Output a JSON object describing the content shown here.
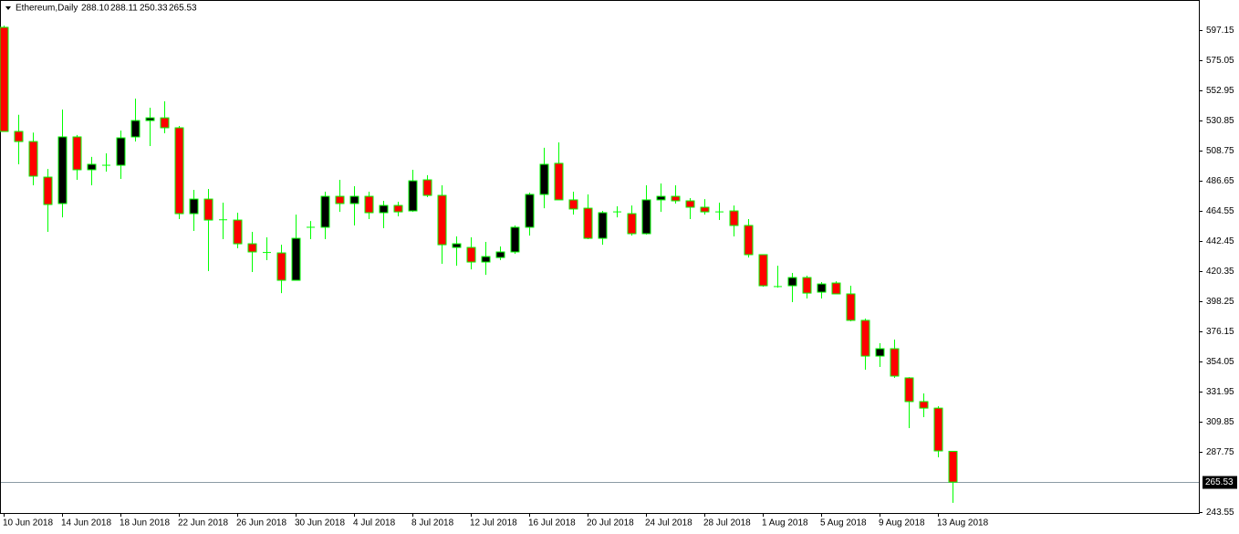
{
  "chart_data": {
    "type": "candlestick",
    "title": "Ethereum,Daily",
    "header_values": [
      "288.10",
      "288.11",
      "250.33",
      "265.53"
    ],
    "categories": [
      "10 Jun 2018",
      null,
      null,
      null,
      "14 Jun 2018",
      null,
      null,
      null,
      "18 Jun 2018",
      null,
      null,
      null,
      "22 Jun 2018",
      null,
      null,
      null,
      "26 Jun 2018",
      null,
      null,
      null,
      "30 Jun 2018",
      null,
      null,
      null,
      "4 Jul 2018",
      null,
      null,
      null,
      "8 Jul 2018",
      null,
      null,
      null,
      "12 Jul 2018",
      null,
      null,
      null,
      "16 Jul 2018",
      null,
      null,
      null,
      "20 Jul 2018",
      null,
      null,
      null,
      "24 Jul 2018",
      null,
      null,
      null,
      "28 Jul 2018",
      null,
      null,
      null,
      "1 Aug 2018",
      null,
      null,
      null,
      "5 Aug 2018",
      null,
      null,
      null,
      "9 Aug 2018",
      null,
      null,
      null,
      "13 Aug 2018",
      null
    ],
    "open": [
      599.2,
      522.8,
      515.4,
      489.3,
      469.9,
      518.8,
      494.7,
      498.7,
      498.0,
      518.8,
      530.8,
      532.8,
      525.5,
      462.5,
      473.2,
      458.5,
      457.8,
      440.4,
      434.4,
      433.7,
      413.6,
      451.8,
      452.5,
      475.2,
      469.9,
      475.2,
      463.2,
      468.5,
      464.5,
      487.3,
      475.9,
      437.7,
      437.7,
      427.0,
      430.3,
      434.4,
      452.5,
      476.6,
      499.4,
      472.6,
      466.5,
      444.4,
      463.2,
      462.5,
      447.8,
      472.6,
      475.2,
      471.9,
      467.2,
      464.5,
      464.5,
      453.8,
      432.4,
      409.6,
      409.6,
      415.6,
      404.9,
      411.6,
      403.6,
      384.2,
      358.0,
      363.4,
      342.0,
      324.6,
      319.8,
      288.1
    ],
    "high": [
      600.5,
      535.0,
      522.0,
      495.3,
      538.9,
      520.2,
      504.1,
      506.7,
      523.5,
      546.9,
      540.2,
      544.9,
      526.8,
      479.9,
      480.6,
      470.6,
      463.2,
      449.1,
      445.1,
      439.7,
      461.8,
      457.1,
      478.6,
      487.3,
      482.6,
      478.6,
      471.9,
      471.2,
      494.7,
      490.7,
      483.3,
      445.8,
      445.1,
      441.8,
      438.4,
      453.8,
      477.9,
      510.8,
      514.8,
      478.6,
      476.6,
      464.5,
      467.9,
      468.5,
      483.3,
      484.6,
      483.3,
      473.9,
      473.2,
      470.6,
      468.5,
      458.5,
      432.4,
      424.3,
      419.0,
      417.0,
      412.3,
      412.9,
      409.6,
      385.5,
      367.4,
      370.1,
      342.6,
      330.6,
      321.2,
      288.11
    ],
    "low": [
      522.8,
      498.7,
      483.3,
      449.1,
      459.8,
      487.3,
      483.3,
      493.3,
      488.0,
      515.4,
      512.1,
      521.5,
      458.5,
      449.8,
      420.3,
      443.8,
      437.1,
      419.7,
      428.4,
      404.2,
      413.6,
      443.8,
      443.8,
      463.8,
      453.8,
      458.5,
      451.8,
      460.5,
      463.8,
      474.6,
      425.7,
      424.3,
      421.6,
      417.6,
      428.4,
      433.0,
      446.4,
      466.5,
      472.6,
      461.8,
      443.8,
      439.7,
      459.8,
      446.4,
      447.1,
      463.8,
      469.9,
      458.5,
      461.8,
      457.8,
      445.8,
      430.3,
      408.9,
      408.2,
      397.6,
      400.2,
      400.2,
      403.6,
      383.5,
      348.0,
      350.0,
      342.0,
      305.1,
      313.2,
      283.7,
      250.33
    ],
    "close": [
      522.8,
      515.4,
      490.0,
      469.2,
      518.8,
      494.7,
      498.7,
      498.0,
      518.1,
      530.8,
      532.8,
      525.5,
      462.5,
      473.2,
      457.8,
      458.0,
      440.4,
      434.4,
      434.0,
      413.6,
      444.4,
      452.5,
      475.2,
      469.9,
      475.2,
      463.2,
      468.5,
      463.8,
      486.6,
      475.9,
      439.7,
      440.4,
      427.0,
      431.0,
      434.4,
      452.5,
      476.6,
      498.7,
      472.6,
      465.9,
      444.4,
      463.2,
      463.8,
      447.8,
      472.6,
      475.2,
      471.9,
      467.2,
      463.8,
      463.8,
      453.8,
      432.4,
      409.6,
      409.0,
      415.6,
      404.2,
      410.9,
      403.6,
      384.2,
      358.0,
      363.4,
      343.3,
      324.6,
      319.8,
      288.4,
      265.53
    ],
    "up_color": "#000000",
    "down_color": "#ff0000",
    "wick_color": "#00ff00",
    "ylim": [
      242.85,
      619.25
    ],
    "yticks": [
      597.15,
      575.05,
      552.95,
      530.85,
      508.75,
      486.65,
      464.55,
      442.45,
      420.35,
      398.25,
      376.15,
      354.05,
      331.95,
      309.85,
      287.75,
      243.55
    ],
    "current_price": {
      "value": 265.53,
      "label": "265.53"
    },
    "grid": false
  }
}
